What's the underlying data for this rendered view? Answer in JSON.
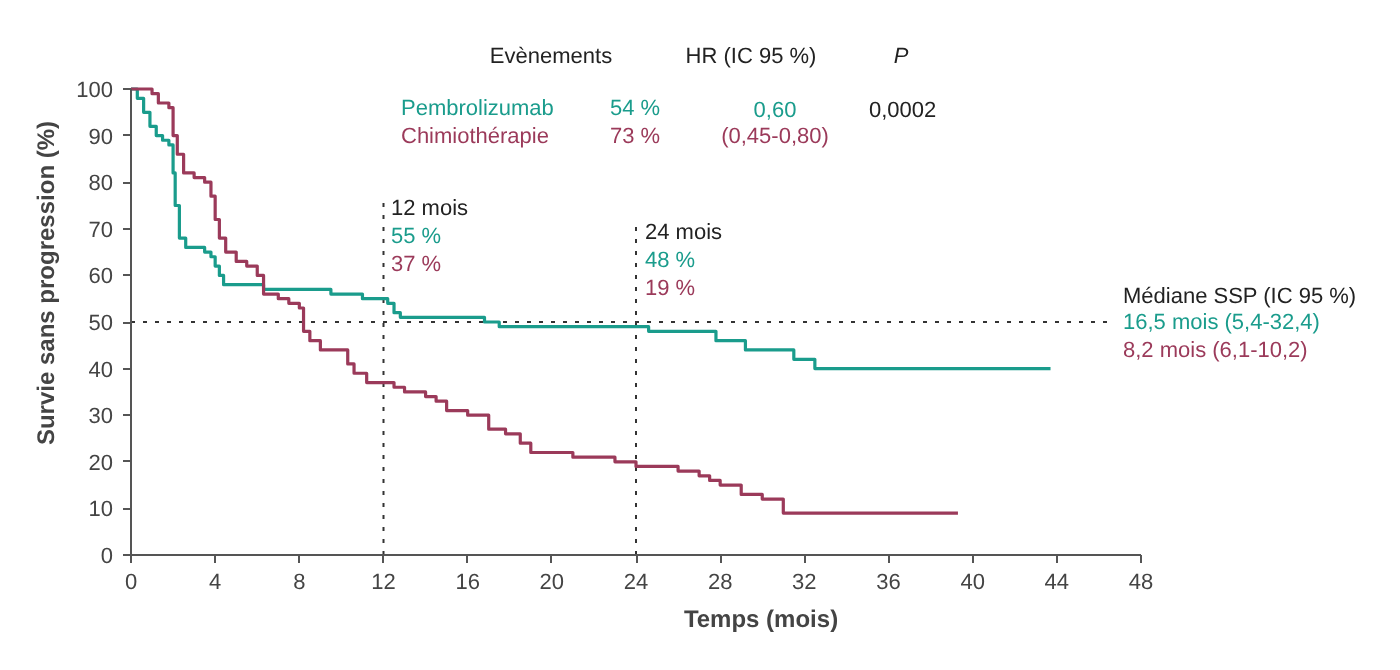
{
  "chart_data": {
    "type": "step",
    "xlabel": "Temps (mois)",
    "ylabel": "Survie sans progression (%)",
    "xlim": [
      0,
      48
    ],
    "ylim": [
      0,
      100
    ],
    "xticks": [
      0,
      4,
      8,
      12,
      16,
      20,
      24,
      28,
      32,
      36,
      40,
      44,
      48
    ],
    "yticks": [
      0,
      10,
      20,
      30,
      40,
      50,
      60,
      70,
      80,
      90,
      100
    ],
    "grid": false,
    "line_style": "solid",
    "series": [
      {
        "name": "Pembrolizumab",
        "color": "#1a9c8c",
        "x": [
          0,
          0.3,
          0.6,
          0.9,
          1.2,
          1.5,
          1.8,
          2.0,
          2.1,
          2.3,
          2.6,
          3.5,
          3.8,
          4.0,
          4.2,
          4.4,
          6.3,
          9.5,
          11.0,
          12.2,
          12.5,
          12.8,
          16.8,
          17.5,
          24.6,
          27.8,
          29.2,
          31.5,
          32.5,
          43.7
        ],
        "values": [
          100,
          98,
          95,
          92,
          90,
          89,
          88,
          82,
          75,
          68,
          66,
          65,
          64,
          62,
          60,
          58,
          57,
          56,
          55,
          54,
          52,
          51,
          50,
          49,
          48,
          46,
          44,
          42,
          40,
          40
        ]
      },
      {
        "name": "Chimiothérapie",
        "color": "#9b3a5a",
        "x": [
          0,
          1.0,
          1.3,
          1.8,
          2.0,
          2.2,
          2.5,
          3.0,
          3.5,
          3.8,
          4.0,
          4.2,
          4.5,
          5.0,
          5.5,
          6.0,
          6.3,
          7.0,
          7.5,
          8.0,
          8.2,
          8.5,
          9.0,
          10.3,
          10.6,
          11.2,
          12.5,
          13.0,
          14.0,
          14.5,
          15.0,
          16.0,
          17.0,
          17.8,
          18.5,
          19.0,
          21.0,
          23.0,
          24.0,
          26.0,
          27.0,
          27.5,
          28.0,
          29.0,
          30.0,
          31.0,
          39.3
        ],
        "values": [
          100,
          99,
          97,
          96,
          90,
          86,
          82,
          81,
          80,
          77,
          72,
          68,
          65,
          63,
          62,
          60,
          56,
          55,
          54,
          53,
          48,
          46,
          44,
          41,
          39,
          37,
          36,
          35,
          34,
          33,
          31,
          30,
          27,
          26,
          24,
          22,
          21,
          20,
          19,
          18,
          17,
          16,
          15,
          13,
          12,
          9,
          9
        ]
      }
    ],
    "ref_lines": [
      {
        "axis": "x",
        "value": 12,
        "label": "12 mois",
        "color": "#333333",
        "line_style": "dotted"
      },
      {
        "axis": "x",
        "value": 24,
        "label": "24 mois",
        "color": "#333333",
        "line_style": "dotted"
      },
      {
        "axis": "y",
        "value": 50,
        "label": "Médiane SSP (IC 95 %)",
        "color": "#333333",
        "line_style": "dotted"
      }
    ],
    "annotations": [
      "Evènements",
      "HR (IC 95 %)",
      "P",
      "54 %",
      "0,60",
      "0,0002",
      "73 %",
      "(0,45-0,80)",
      "55 %",
      "37 %",
      "48 %",
      "19 %",
      "16,5 mois (5,4-32,4)",
      "8,2 mois (6,1-10,2)"
    ]
  }
}
